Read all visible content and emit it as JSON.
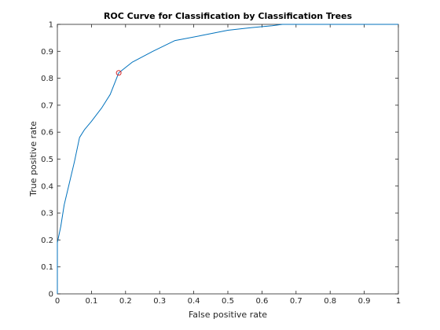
{
  "chart_data": {
    "type": "line",
    "title": "ROC Curve for Classification by Classification Trees",
    "xlabel": "False positive rate",
    "ylabel": "True positive rate",
    "xlim": [
      0,
      1
    ],
    "ylim": [
      0,
      1
    ],
    "x_ticks": [
      "0",
      "0.1",
      "0.2",
      "0.3",
      "0.4",
      "0.5",
      "0.6",
      "0.7",
      "0.8",
      "0.9",
      "1"
    ],
    "y_ticks": [
      "0",
      "0.1",
      "0.2",
      "0.3",
      "0.4",
      "0.5",
      "0.6",
      "0.7",
      "0.8",
      "0.9",
      "1"
    ],
    "grid": false,
    "series": [
      {
        "color": "#0072bd",
        "x": [
          0,
          0,
          0.01,
          0.02,
          0.035,
          0.05,
          0.065,
          0.08,
          0.1,
          0.13,
          0.155,
          0.18,
          0.22,
          0.28,
          0.345,
          0.42,
          0.5,
          0.57,
          0.63,
          0.66,
          0.7,
          0.8,
          0.9,
          1
        ],
        "y": [
          0,
          0.19,
          0.25,
          0.33,
          0.41,
          0.49,
          0.58,
          0.61,
          0.64,
          0.69,
          0.74,
          0.82,
          0.86,
          0.9,
          0.94,
          0.958,
          0.978,
          0.988,
          0.995,
          1,
          1,
          1,
          1,
          1
        ]
      }
    ],
    "marker": {
      "x": 0.18,
      "y": 0.82,
      "shape": "circle",
      "color": "#d62728"
    }
  }
}
